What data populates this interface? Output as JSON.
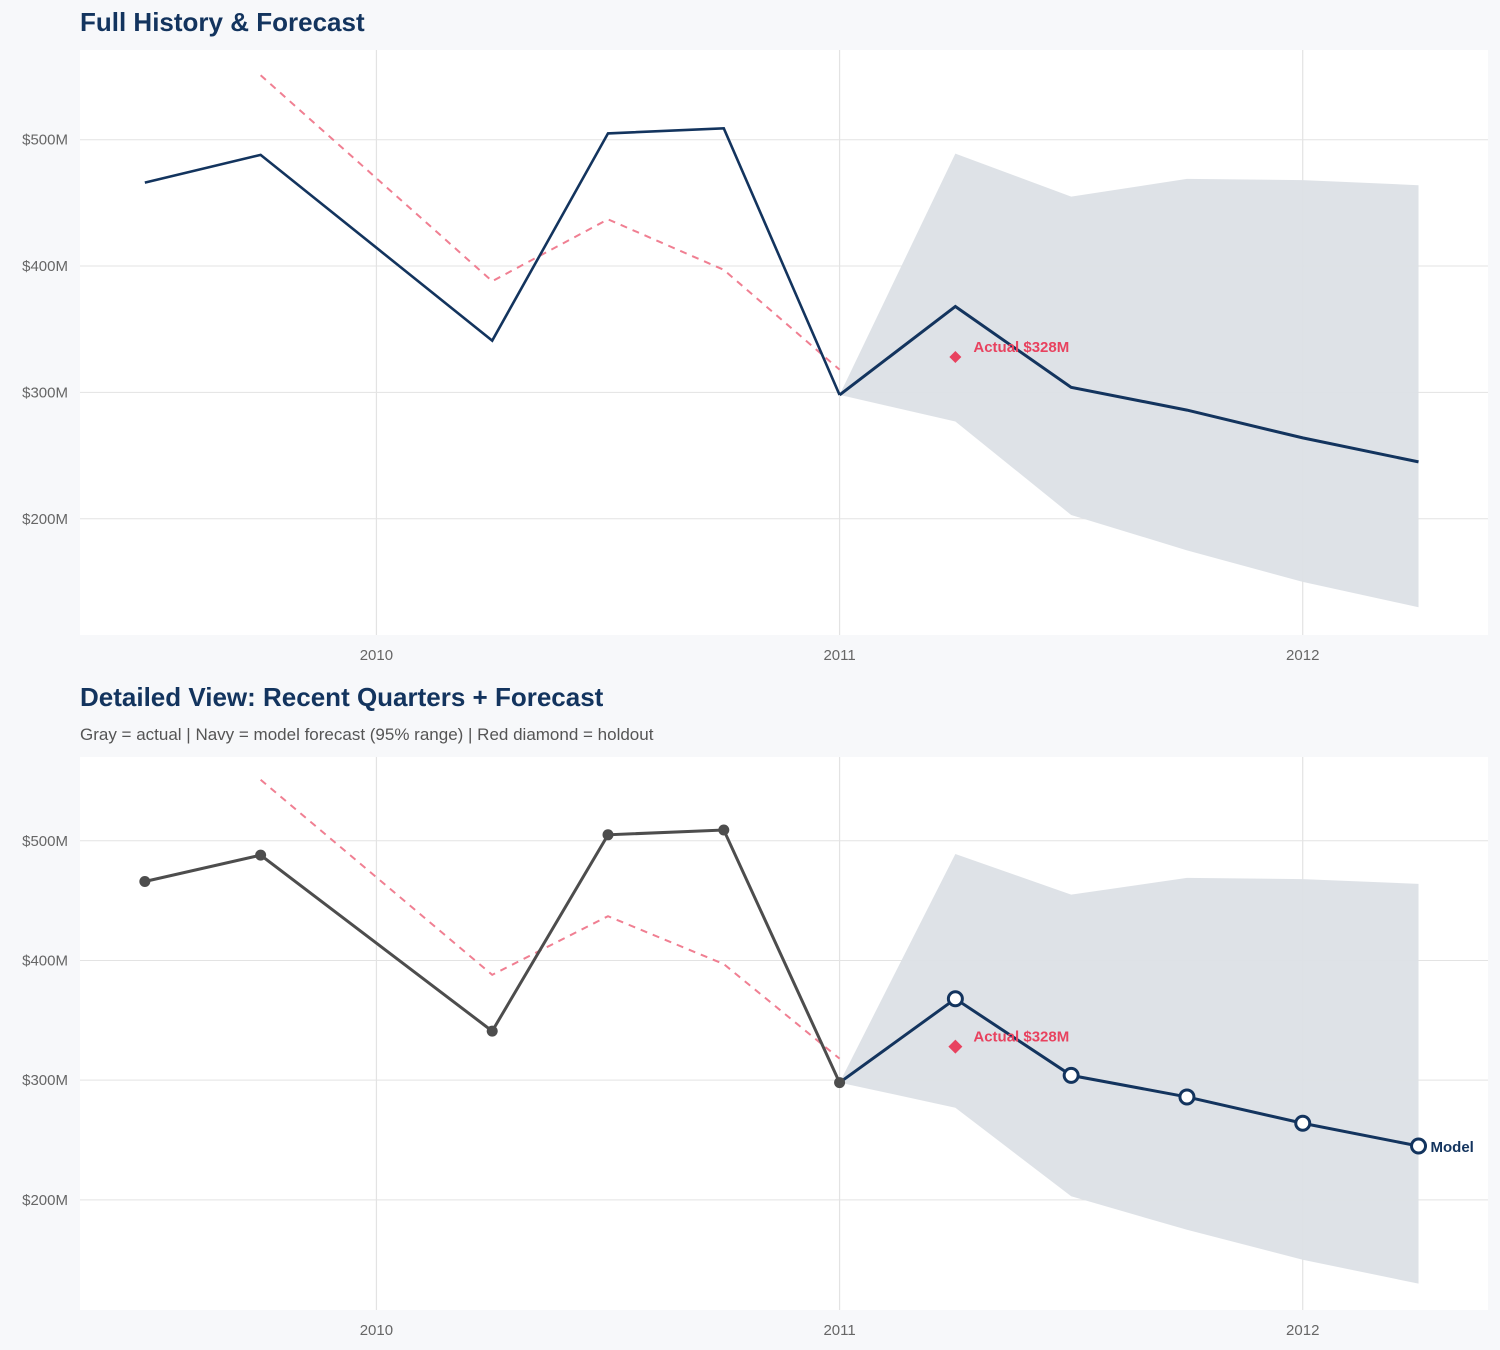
{
  "colors": {
    "background": "#f7f8fa",
    "navy": "#13345e",
    "actual_gray": "#4d4d4d",
    "holdout_red": "#e8425f",
    "dashed_pink": "#f07f92",
    "band": "#dce0e6",
    "grid": "#e3e3e3"
  },
  "chart_data": [
    {
      "type": "line",
      "title": "Full History & Forecast",
      "subtitle": "",
      "xlabel": "",
      "ylabel": "",
      "xlim": [
        2009.36,
        2012.4
      ],
      "ylim": [
        108,
        571
      ],
      "x_ticks": [
        2010,
        2011,
        2012
      ],
      "x_tick_labels": [
        "2010",
        "2011",
        "2012"
      ],
      "y_ticks": [
        200,
        300,
        400,
        500
      ],
      "y_tick_labels": [
        "$200M",
        "$300M",
        "$400M",
        "$500M"
      ],
      "grid": true,
      "markers": false,
      "actual": {
        "color": "#13345e",
        "x": [
          2009.5,
          2009.75,
          2010.25,
          2010.5,
          2010.75,
          2011.0
        ],
        "y": [
          466,
          488,
          341,
          505,
          509,
          298
        ]
      },
      "forecast": {
        "color": "#13345e",
        "x": [
          2011.0,
          2011.25,
          2011.5,
          2011.75,
          2012.0,
          2012.25
        ],
        "y": [
          298,
          368,
          304,
          286,
          264,
          245
        ]
      },
      "band_95": {
        "x": [
          2011.0,
          2011.25,
          2011.5,
          2011.75,
          2012.0,
          2012.25
        ],
        "lower": [
          298,
          277,
          203,
          175,
          150,
          130
        ],
        "upper": [
          298,
          489,
          455,
          469,
          468,
          464
        ]
      },
      "dashed": {
        "color": "#f07f92",
        "x": [
          2009.75,
          2010.25,
          2010.5,
          2010.75,
          2011.0
        ],
        "y": [
          551,
          388,
          437,
          397,
          318
        ]
      },
      "holdout": {
        "x": 2011.25,
        "y": 328,
        "label": "Actual $328M"
      },
      "end_label": ""
    },
    {
      "type": "line",
      "title": "Detailed View: Recent Quarters + Forecast",
      "subtitle": "Gray = actual  |  Navy = model forecast (95% range)  |  Red diamond = holdout",
      "xlabel": "",
      "ylabel": "",
      "xlim": [
        2009.36,
        2012.4
      ],
      "ylim": [
        108,
        570
      ],
      "x_ticks": [
        2010,
        2011,
        2012
      ],
      "x_tick_labels": [
        "2010",
        "2011",
        "2012"
      ],
      "y_ticks": [
        200,
        300,
        400,
        500
      ],
      "y_tick_labels": [
        "$200M",
        "$300M",
        "$400M",
        "$500M"
      ],
      "grid": true,
      "markers": true,
      "actual": {
        "color": "#4d4d4d",
        "x": [
          2009.5,
          2009.75,
          2010.25,
          2010.5,
          2010.75,
          2011.0
        ],
        "y": [
          466,
          488,
          341,
          505,
          509,
          298
        ]
      },
      "forecast": {
        "color": "#13345e",
        "x": [
          2011.0,
          2011.25,
          2011.5,
          2011.75,
          2012.0,
          2012.25
        ],
        "y": [
          298,
          368,
          304,
          286,
          264,
          245
        ]
      },
      "band_95": {
        "x": [
          2011.0,
          2011.25,
          2011.5,
          2011.75,
          2012.0,
          2012.25
        ],
        "lower": [
          298,
          277,
          203,
          175,
          150,
          130
        ],
        "upper": [
          298,
          489,
          455,
          469,
          468,
          464
        ]
      },
      "dashed": {
        "color": "#f07f92",
        "x": [
          2009.75,
          2010.25,
          2010.5,
          2010.75,
          2011.0
        ],
        "y": [
          551,
          388,
          437,
          397,
          318
        ]
      },
      "holdout": {
        "x": 2011.25,
        "y": 328,
        "label": "Actual $328M"
      },
      "end_label": "Model"
    }
  ]
}
